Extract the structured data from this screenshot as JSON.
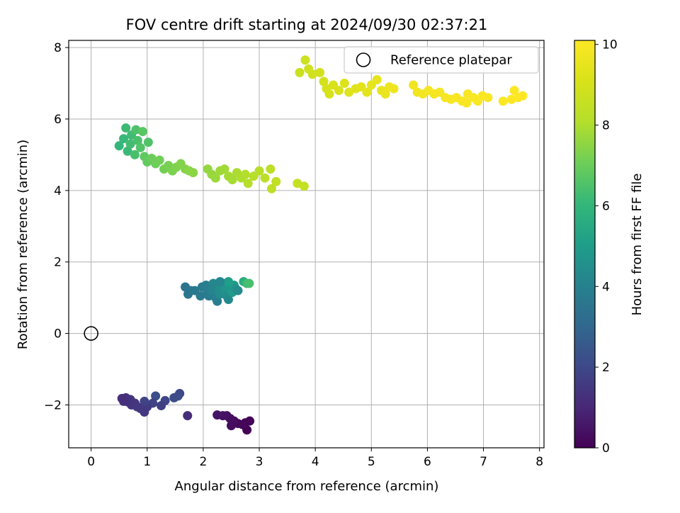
{
  "chart_data": {
    "type": "scatter",
    "title": "FOV centre drift starting at 2024/09/30 02:37:21",
    "xlabel": "Angular distance from reference (arcmin)",
    "ylabel": "Rotation from reference (arcmin)",
    "xlim": [
      -0.4,
      8.08
    ],
    "ylim": [
      -3.2,
      8.2
    ],
    "x_ticks": [
      0,
      1,
      2,
      3,
      4,
      5,
      6,
      7,
      8
    ],
    "y_ticks": [
      -2,
      0,
      2,
      4,
      6,
      8
    ],
    "grid": true,
    "legend": {
      "placement": "top-right",
      "entries": [
        "Reference platepar"
      ]
    },
    "reference_point": {
      "x": 0,
      "y": 0,
      "label": "Reference platepar"
    },
    "colorbar": {
      "label": "Hours from first FF file",
      "range": [
        0,
        10.1
      ],
      "ticks": [
        0,
        2,
        4,
        6,
        8,
        10
      ],
      "colormap": "viridis"
    },
    "series": [
      {
        "points": [
          {
            "x": 2.78,
            "y": -2.7,
            "t": 0.0
          },
          {
            "x": 2.75,
            "y": -2.5,
            "t": 0.05
          },
          {
            "x": 2.83,
            "y": -2.45,
            "t": 0.1
          },
          {
            "x": 2.7,
            "y": -2.55,
            "t": 0.15
          },
          {
            "x": 2.62,
            "y": -2.52,
            "t": 0.2
          },
          {
            "x": 2.55,
            "y": -2.45,
            "t": 0.25
          },
          {
            "x": 2.5,
            "y": -2.58,
            "t": 0.3
          },
          {
            "x": 2.48,
            "y": -2.38,
            "t": 0.35
          },
          {
            "x": 2.42,
            "y": -2.3,
            "t": 0.4
          },
          {
            "x": 2.35,
            "y": -2.3,
            "t": 0.45
          },
          {
            "x": 2.25,
            "y": -2.28,
            "t": 0.5
          },
          {
            "x": 1.72,
            "y": -2.3,
            "t": 1.2
          },
          {
            "x": 1.58,
            "y": -1.68,
            "t": 2.0
          },
          {
            "x": 1.55,
            "y": -1.75,
            "t": 2.05
          },
          {
            "x": 1.48,
            "y": -1.8,
            "t": 2.1
          },
          {
            "x": 1.32,
            "y": -1.88,
            "t": 1.9
          },
          {
            "x": 1.25,
            "y": -2.02,
            "t": 1.7
          },
          {
            "x": 1.15,
            "y": -1.75,
            "t": 2.2
          },
          {
            "x": 1.1,
            "y": -1.95,
            "t": 1.8
          },
          {
            "x": 1.0,
            "y": -2.05,
            "t": 1.6
          },
          {
            "x": 0.95,
            "y": -2.2,
            "t": 1.5
          },
          {
            "x": 0.95,
            "y": -1.9,
            "t": 1.85
          },
          {
            "x": 0.88,
            "y": -2.1,
            "t": 1.55
          },
          {
            "x": 0.82,
            "y": -2.05,
            "t": 1.5
          },
          {
            "x": 0.78,
            "y": -1.95,
            "t": 1.45
          },
          {
            "x": 0.72,
            "y": -2.0,
            "t": 1.45
          },
          {
            "x": 0.7,
            "y": -1.85,
            "t": 1.4
          },
          {
            "x": 0.66,
            "y": -1.92,
            "t": 1.35
          },
          {
            "x": 0.62,
            "y": -1.8,
            "t": 1.3
          },
          {
            "x": 0.58,
            "y": -1.9,
            "t": 1.3
          },
          {
            "x": 0.55,
            "y": -1.82,
            "t": 1.25
          },
          {
            "x": 1.68,
            "y": 1.3,
            "t": 3.5
          },
          {
            "x": 1.78,
            "y": 1.2,
            "t": 3.6
          },
          {
            "x": 1.73,
            "y": 1.1,
            "t": 3.55
          },
          {
            "x": 1.85,
            "y": 1.2,
            "t": 3.65
          },
          {
            "x": 1.95,
            "y": 1.05,
            "t": 3.7
          },
          {
            "x": 1.98,
            "y": 1.3,
            "t": 3.8
          },
          {
            "x": 2.05,
            "y": 1.35,
            "t": 3.9
          },
          {
            "x": 2.08,
            "y": 1.15,
            "t": 3.85
          },
          {
            "x": 2.1,
            "y": 1.05,
            "t": 3.75
          },
          {
            "x": 2.15,
            "y": 1.2,
            "t": 4.1
          },
          {
            "x": 2.18,
            "y": 1.4,
            "t": 4.2
          },
          {
            "x": 2.22,
            "y": 1.0,
            "t": 4.0
          },
          {
            "x": 2.25,
            "y": 0.9,
            "t": 3.9
          },
          {
            "x": 2.28,
            "y": 1.25,
            "t": 4.3
          },
          {
            "x": 2.3,
            "y": 1.1,
            "t": 4.4
          },
          {
            "x": 2.33,
            "y": 1.3,
            "t": 4.5
          },
          {
            "x": 2.36,
            "y": 1.4,
            "t": 4.6
          },
          {
            "x": 2.4,
            "y": 1.2,
            "t": 4.7
          },
          {
            "x": 2.42,
            "y": 1.05,
            "t": 4.5
          },
          {
            "x": 2.45,
            "y": 0.95,
            "t": 4.3
          },
          {
            "x": 2.48,
            "y": 1.3,
            "t": 4.8
          },
          {
            "x": 2.52,
            "y": 1.15,
            "t": 4.9
          },
          {
            "x": 2.55,
            "y": 1.35,
            "t": 5.0
          },
          {
            "x": 2.58,
            "y": 1.25,
            "t": 4.6
          },
          {
            "x": 2.62,
            "y": 1.2,
            "t": 4.4
          },
          {
            "x": 2.45,
            "y": 1.45,
            "t": 5.1
          },
          {
            "x": 2.72,
            "y": 1.45,
            "t": 5.6
          },
          {
            "x": 2.78,
            "y": 1.4,
            "t": 6.2
          },
          {
            "x": 2.82,
            "y": 1.4,
            "t": 6.4
          },
          {
            "x": 2.3,
            "y": 1.45,
            "t": 4.2
          },
          {
            "x": 0.5,
            "y": 5.25,
            "t": 6.0
          },
          {
            "x": 0.58,
            "y": 5.45,
            "t": 6.1
          },
          {
            "x": 0.62,
            "y": 5.75,
            "t": 6.2
          },
          {
            "x": 0.65,
            "y": 5.1,
            "t": 6.15
          },
          {
            "x": 0.7,
            "y": 5.3,
            "t": 6.3
          },
          {
            "x": 0.72,
            "y": 5.55,
            "t": 6.25
          },
          {
            "x": 0.78,
            "y": 5.0,
            "t": 6.4
          },
          {
            "x": 0.8,
            "y": 5.7,
            "t": 6.5
          },
          {
            "x": 0.83,
            "y": 5.4,
            "t": 6.45
          },
          {
            "x": 0.88,
            "y": 5.2,
            "t": 6.6
          },
          {
            "x": 0.92,
            "y": 5.65,
            "t": 6.7
          },
          {
            "x": 0.95,
            "y": 4.95,
            "t": 6.8
          },
          {
            "x": 1.02,
            "y": 5.35,
            "t": 6.55
          },
          {
            "x": 1.0,
            "y": 4.8,
            "t": 6.9
          },
          {
            "x": 1.08,
            "y": 4.9,
            "t": 7.0
          },
          {
            "x": 1.15,
            "y": 4.75,
            "t": 7.05
          },
          {
            "x": 1.22,
            "y": 4.85,
            "t": 7.1
          },
          {
            "x": 1.3,
            "y": 4.6,
            "t": 7.15
          },
          {
            "x": 1.38,
            "y": 4.7,
            "t": 7.2
          },
          {
            "x": 1.45,
            "y": 4.55,
            "t": 7.25
          },
          {
            "x": 1.52,
            "y": 4.65,
            "t": 7.3
          },
          {
            "x": 1.6,
            "y": 4.75,
            "t": 7.35
          },
          {
            "x": 1.68,
            "y": 4.6,
            "t": 7.4
          },
          {
            "x": 1.75,
            "y": 4.55,
            "t": 7.45
          },
          {
            "x": 1.82,
            "y": 4.5,
            "t": 7.5
          },
          {
            "x": 2.08,
            "y": 4.6,
            "t": 7.6
          },
          {
            "x": 2.15,
            "y": 4.45,
            "t": 7.65
          },
          {
            "x": 2.22,
            "y": 4.35,
            "t": 7.7
          },
          {
            "x": 2.3,
            "y": 4.55,
            "t": 7.75
          },
          {
            "x": 2.38,
            "y": 4.6,
            "t": 7.8
          },
          {
            "x": 2.45,
            "y": 4.4,
            "t": 7.85
          },
          {
            "x": 2.52,
            "y": 4.3,
            "t": 7.9
          },
          {
            "x": 2.6,
            "y": 4.5,
            "t": 7.95
          },
          {
            "x": 2.68,
            "y": 4.35,
            "t": 8.0
          },
          {
            "x": 2.75,
            "y": 4.45,
            "t": 8.05
          },
          {
            "x": 2.8,
            "y": 4.2,
            "t": 8.1
          },
          {
            "x": 2.9,
            "y": 4.4,
            "t": 8.15
          },
          {
            "x": 3.0,
            "y": 4.55,
            "t": 8.2
          },
          {
            "x": 3.1,
            "y": 4.35,
            "t": 8.25
          },
          {
            "x": 3.2,
            "y": 4.6,
            "t": 8.3
          },
          {
            "x": 3.22,
            "y": 4.05,
            "t": 8.35
          },
          {
            "x": 3.3,
            "y": 4.25,
            "t": 8.4
          },
          {
            "x": 3.68,
            "y": 4.2,
            "t": 8.5
          },
          {
            "x": 3.8,
            "y": 4.12,
            "t": 8.55
          },
          {
            "x": 3.72,
            "y": 7.3,
            "t": 8.7
          },
          {
            "x": 3.82,
            "y": 7.65,
            "t": 8.75
          },
          {
            "x": 3.88,
            "y": 7.4,
            "t": 8.8
          },
          {
            "x": 3.95,
            "y": 7.25,
            "t": 8.85
          },
          {
            "x": 4.08,
            "y": 7.3,
            "t": 8.9
          },
          {
            "x": 4.15,
            "y": 7.05,
            "t": 8.95
          },
          {
            "x": 4.2,
            "y": 6.85,
            "t": 9.0
          },
          {
            "x": 4.25,
            "y": 6.7,
            "t": 9.05
          },
          {
            "x": 4.32,
            "y": 6.95,
            "t": 9.1
          },
          {
            "x": 4.42,
            "y": 6.8,
            "t": 9.15
          },
          {
            "x": 4.52,
            "y": 7.0,
            "t": 9.2
          },
          {
            "x": 4.6,
            "y": 6.75,
            "t": 9.25
          },
          {
            "x": 4.72,
            "y": 6.85,
            "t": 9.3
          },
          {
            "x": 4.82,
            "y": 6.9,
            "t": 9.35
          },
          {
            "x": 4.92,
            "y": 6.75,
            "t": 9.4
          },
          {
            "x": 5.0,
            "y": 6.95,
            "t": 9.45
          },
          {
            "x": 5.1,
            "y": 7.1,
            "t": 9.5
          },
          {
            "x": 5.18,
            "y": 6.8,
            "t": 9.55
          },
          {
            "x": 5.25,
            "y": 6.7,
            "t": 9.6
          },
          {
            "x": 5.32,
            "y": 6.9,
            "t": 9.65
          },
          {
            "x": 5.4,
            "y": 6.85,
            "t": 9.7
          },
          {
            "x": 5.75,
            "y": 6.95,
            "t": 9.75
          },
          {
            "x": 5.82,
            "y": 6.75,
            "t": 9.8
          },
          {
            "x": 5.92,
            "y": 6.7,
            "t": 9.82
          },
          {
            "x": 6.02,
            "y": 6.8,
            "t": 9.85
          },
          {
            "x": 6.12,
            "y": 6.7,
            "t": 9.87
          },
          {
            "x": 6.22,
            "y": 6.75,
            "t": 9.9
          },
          {
            "x": 6.32,
            "y": 6.6,
            "t": 9.92
          },
          {
            "x": 6.42,
            "y": 6.55,
            "t": 9.93
          },
          {
            "x": 6.52,
            "y": 6.6,
            "t": 9.95
          },
          {
            "x": 6.62,
            "y": 6.5,
            "t": 9.96
          },
          {
            "x": 6.7,
            "y": 6.45,
            "t": 9.97
          },
          {
            "x": 6.72,
            "y": 6.7,
            "t": 9.98
          },
          {
            "x": 6.82,
            "y": 6.6,
            "t": 9.99
          },
          {
            "x": 6.9,
            "y": 6.5,
            "t": 10.0
          },
          {
            "x": 6.98,
            "y": 6.65,
            "t": 10.0
          },
          {
            "x": 7.08,
            "y": 6.6,
            "t": 10.02
          },
          {
            "x": 7.35,
            "y": 6.5,
            "t": 10.05
          },
          {
            "x": 7.5,
            "y": 6.55,
            "t": 10.07
          },
          {
            "x": 7.55,
            "y": 6.8,
            "t": 10.08
          },
          {
            "x": 7.62,
            "y": 6.6,
            "t": 10.09
          },
          {
            "x": 7.7,
            "y": 6.65,
            "t": 10.1
          }
        ]
      }
    ]
  }
}
